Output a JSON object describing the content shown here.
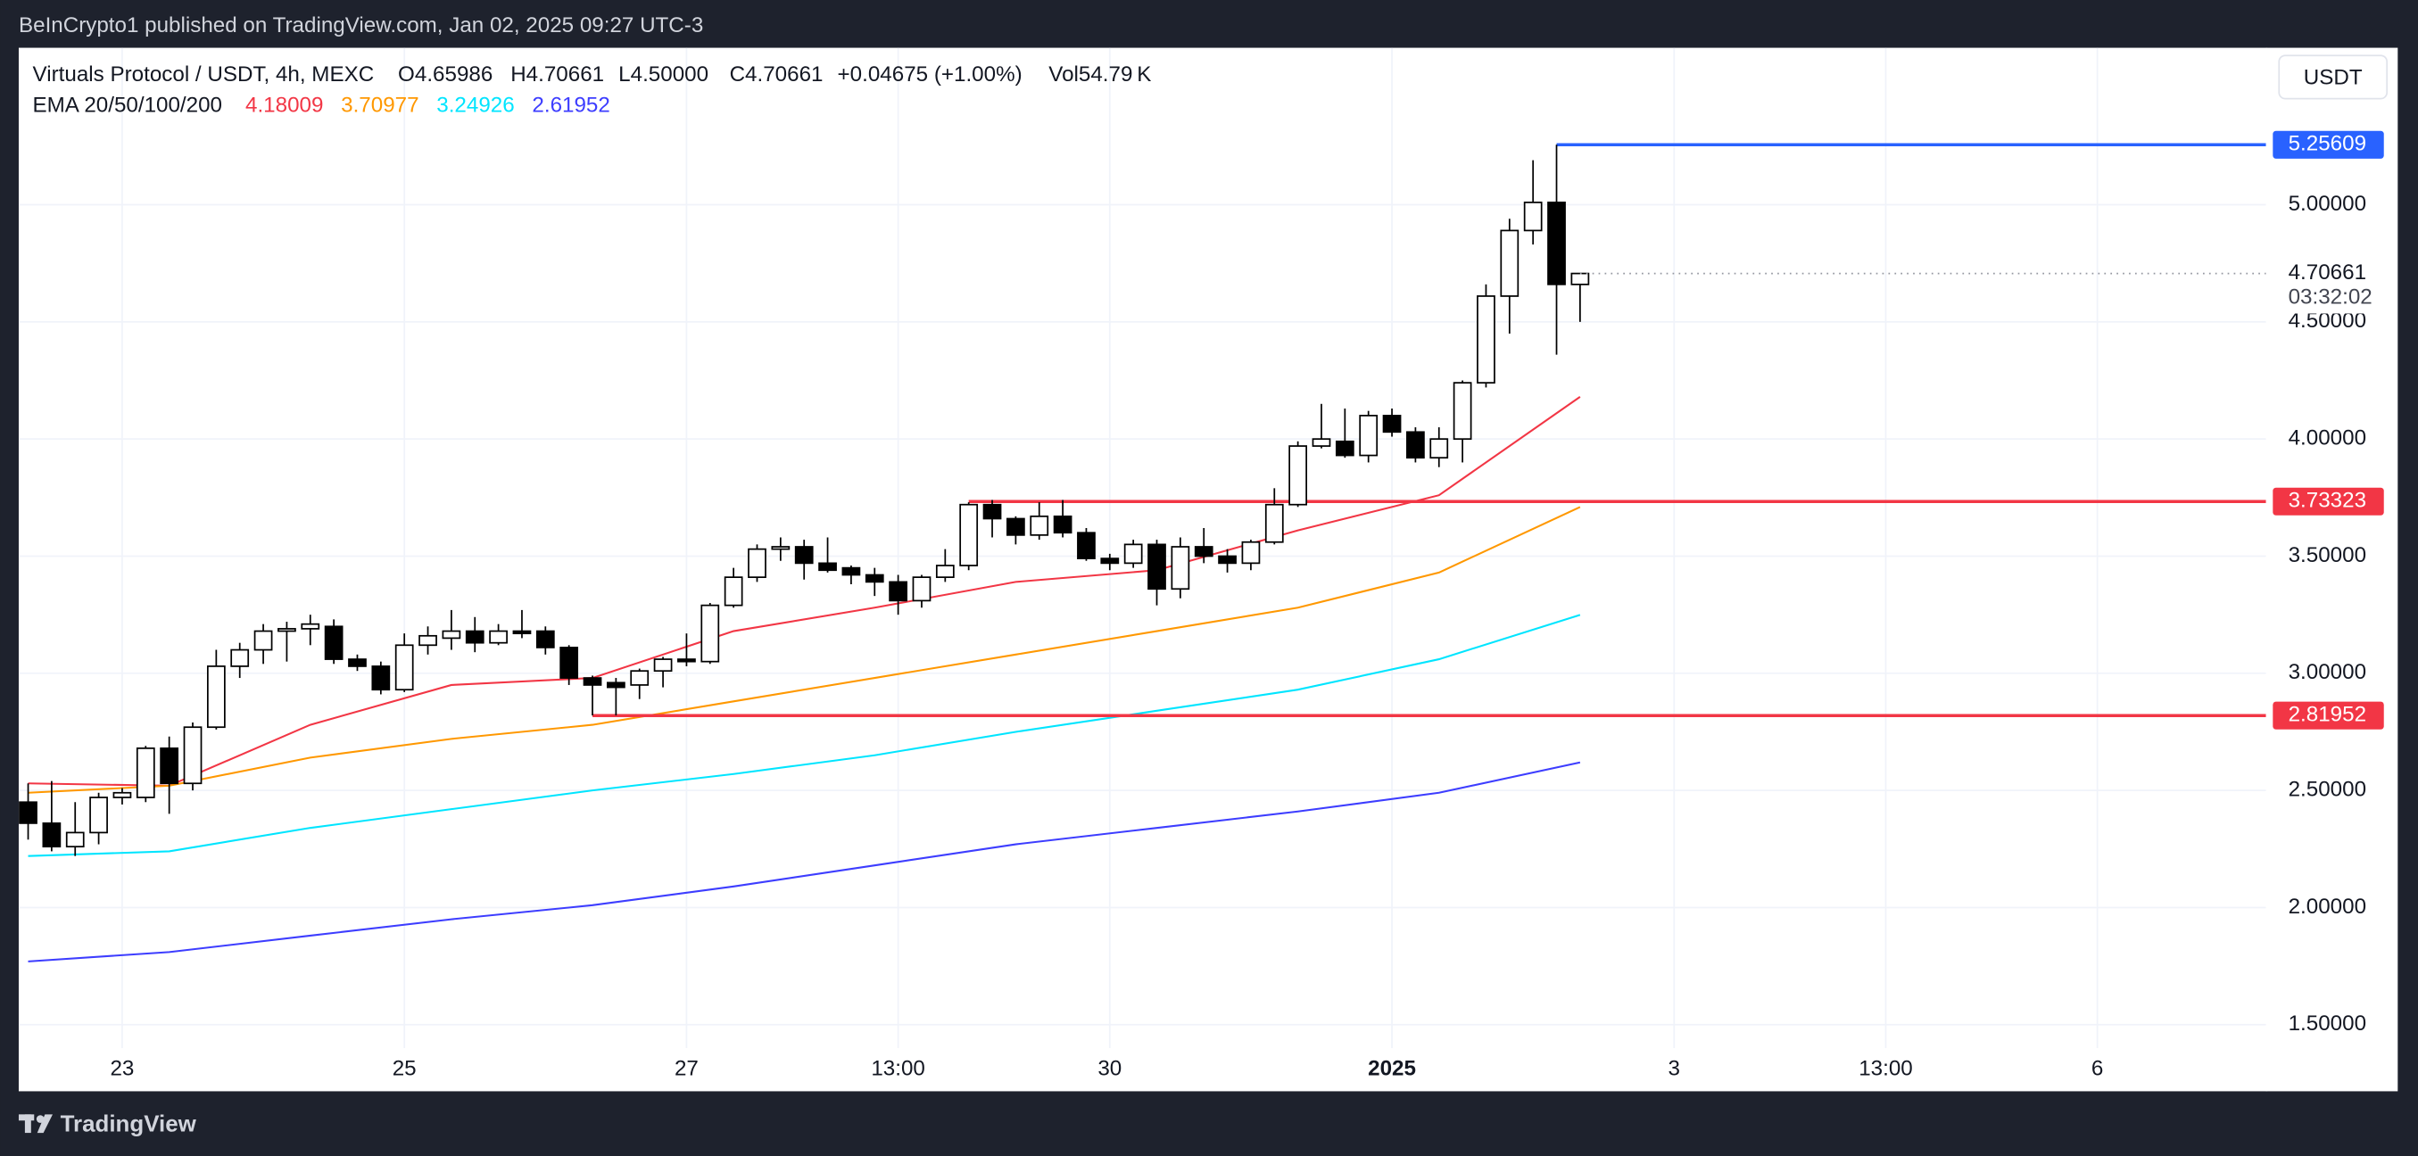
{
  "header": {
    "published": "BeInCrypto1 published on TradingView.com, Jan 02, 2025 09:27 UTC-3",
    "currency_button": "USDT",
    "brand": "TradingView"
  },
  "chart_data": {
    "type": "candlestick",
    "title": "Virtuals Protocol / USDT, 4h, MEXC",
    "ohlc_legend": [
      "O4.65986",
      "H4.70661",
      "L4.50000",
      "C4.70661",
      "+0.04675 (+1.00%)",
      "Vol54.79 K"
    ],
    "indicator_label": "EMA 20/50/100/200",
    "open": [
      2.45,
      2.36,
      2.26,
      2.32,
      2.47,
      2.47,
      2.68,
      2.53,
      2.77,
      3.03,
      3.1,
      3.18,
      3.19,
      3.2,
      3.06,
      3.03,
      2.93,
      3.12,
      3.15,
      3.18,
      3.13,
      3.18,
      3.18,
      3.11,
      2.98,
      2.96,
      2.95,
      3.01,
      3.06,
      3.05,
      3.29,
      3.41,
      3.53,
      3.54,
      3.47,
      3.45,
      3.42,
      3.39,
      3.31,
      3.41,
      3.46,
      3.72,
      3.66,
      3.59,
      3.67,
      3.6,
      3.49,
      3.47,
      3.55,
      3.36,
      3.54,
      3.5,
      3.47,
      3.56,
      3.72,
      3.97,
      3.99,
      3.93,
      4.1,
      4.03,
      3.92,
      4.0,
      4.24,
      4.61,
      4.89,
      5.01,
      4.65986
    ],
    "high": [
      2.53,
      2.54,
      2.45,
      2.49,
      2.51,
      2.69,
      2.73,
      2.79,
      3.1,
      3.13,
      3.21,
      3.22,
      3.25,
      3.23,
      3.08,
      3.05,
      3.17,
      3.2,
      3.27,
      3.24,
      3.21,
      3.27,
      3.2,
      3.12,
      2.99,
      2.98,
      3.02,
      3.07,
      3.17,
      3.3,
      3.45,
      3.55,
      3.58,
      3.57,
      3.58,
      3.46,
      3.45,
      3.42,
      3.42,
      3.53,
      3.73,
      3.74,
      3.67,
      3.73,
      3.74,
      3.62,
      3.51,
      3.57,
      3.57,
      3.58,
      3.62,
      3.53,
      3.57,
      3.79,
      3.99,
      4.15,
      4.13,
      4.12,
      4.13,
      4.05,
      4.05,
      4.25,
      4.66,
      4.94,
      5.19,
      5.25609,
      4.70661
    ],
    "low": [
      2.29,
      2.24,
      2.22,
      2.27,
      2.44,
      2.45,
      2.4,
      2.5,
      2.76,
      2.98,
      3.04,
      3.05,
      3.12,
      3.04,
      3.01,
      2.91,
      2.92,
      3.08,
      3.1,
      3.09,
      3.12,
      3.15,
      3.08,
      2.95,
      2.82,
      2.82,
      2.89,
      2.94,
      3.03,
      3.04,
      3.28,
      3.39,
      3.48,
      3.4,
      3.43,
      3.38,
      3.33,
      3.25,
      3.28,
      3.39,
      3.44,
      3.58,
      3.55,
      3.57,
      3.58,
      3.48,
      3.44,
      3.45,
      3.29,
      3.32,
      3.47,
      3.43,
      3.44,
      3.55,
      3.71,
      3.96,
      3.92,
      3.9,
      4.01,
      3.9,
      3.88,
      3.9,
      4.22,
      4.45,
      4.83,
      4.36,
      4.5
    ],
    "close": [
      2.36,
      2.26,
      2.32,
      2.47,
      2.49,
      2.68,
      2.53,
      2.77,
      3.03,
      3.1,
      3.18,
      3.19,
      3.21,
      3.06,
      3.03,
      2.93,
      3.12,
      3.16,
      3.18,
      3.13,
      3.18,
      3.17,
      3.11,
      2.98,
      2.95,
      2.94,
      3.01,
      3.06,
      3.05,
      3.29,
      3.41,
      3.53,
      3.54,
      3.47,
      3.44,
      3.42,
      3.39,
      3.31,
      3.41,
      3.46,
      3.72,
      3.66,
      3.59,
      3.67,
      3.6,
      3.49,
      3.47,
      3.55,
      3.36,
      3.54,
      3.5,
      3.47,
      3.56,
      3.72,
      3.97,
      4.0,
      3.93,
      4.1,
      4.03,
      3.92,
      4.0,
      4.24,
      4.61,
      4.89,
      5.01,
      4.66,
      4.70661
    ],
    "series": [
      {
        "color": "#f23645",
        "x": [
          0,
          6,
          12,
          18,
          24,
          30,
          36,
          42,
          48,
          54,
          60,
          66
        ],
        "values": [
          2.53,
          2.52,
          2.78,
          2.95,
          2.98,
          3.18,
          3.28,
          3.39,
          3.44,
          3.61,
          3.76,
          4.18009
        ]
      },
      {
        "color": "#ff9800",
        "x": [
          0,
          6,
          12,
          18,
          24,
          30,
          36,
          42,
          48,
          54,
          60,
          66
        ],
        "values": [
          2.49,
          2.52,
          2.64,
          2.72,
          2.78,
          2.88,
          2.98,
          3.08,
          3.18,
          3.28,
          3.43,
          3.70977
        ]
      },
      {
        "color": "#00e5ff",
        "x": [
          0,
          6,
          12,
          18,
          24,
          30,
          36,
          42,
          48,
          54,
          60,
          66
        ],
        "values": [
          2.22,
          2.24,
          2.34,
          2.42,
          2.5,
          2.57,
          2.65,
          2.75,
          2.84,
          2.93,
          3.06,
          3.24926
        ]
      },
      {
        "color": "#3d3dff",
        "x": [
          0,
          6,
          12,
          18,
          24,
          30,
          36,
          42,
          48,
          54,
          60,
          66
        ],
        "values": [
          1.77,
          1.81,
          1.88,
          1.95,
          2.01,
          2.09,
          2.18,
          2.27,
          2.34,
          2.41,
          2.49,
          2.61952
        ]
      }
    ],
    "levels": [
      {
        "value": 5.25609,
        "color": "#2962ff",
        "from": 65
      },
      {
        "value": 3.73323,
        "color": "#f23645",
        "from": 40
      },
      {
        "value": 2.81952,
        "color": "#f23645",
        "from": 24
      }
    ],
    "last_price": 4.70661,
    "countdown": "03:32:02",
    "xlim": [
      -0.4,
      95.2
    ],
    "ylim": [
      1.4,
      5.67
    ],
    "xticks": [
      {
        "value": 4,
        "label": "23"
      },
      {
        "value": 16,
        "label": "25"
      },
      {
        "value": 28,
        "label": "27"
      },
      {
        "value": 37,
        "label": "13:00"
      },
      {
        "value": 46,
        "label": "30"
      },
      {
        "value": 58,
        "label": "2025",
        "bold": true
      },
      {
        "value": 70,
        "label": "3"
      },
      {
        "value": 79,
        "label": "13:00"
      },
      {
        "value": 88,
        "label": "6"
      }
    ],
    "yticks": [
      {
        "value": 1.5,
        "label": "1.50000"
      },
      {
        "value": 2,
        "label": "2.00000"
      },
      {
        "value": 2.5,
        "label": "2.50000"
      },
      {
        "value": 3,
        "label": "3.00000"
      },
      {
        "value": 3.5,
        "label": "3.50000"
      },
      {
        "value": 4,
        "label": "4.00000"
      },
      {
        "value": 4.5,
        "label": "4.50000"
      },
      {
        "value": 5,
        "label": "5.00000"
      }
    ],
    "grid": true
  }
}
